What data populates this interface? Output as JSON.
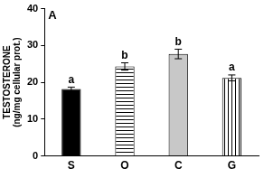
{
  "chart_data": {
    "type": "bar",
    "title": "A",
    "y_label": [
      "TESTOSTERONE",
      "(ng/mg cellular prot.)"
    ],
    "categories": [
      "S",
      "O",
      "C",
      "G"
    ],
    "values": [
      18.2,
      24.3,
      27.7,
      21.2
    ],
    "errors": [
      0.5,
      1.0,
      1.3,
      0.8
    ],
    "annotations": [
      "a",
      "b",
      "b",
      "a"
    ],
    "colors": [
      "#000000",
      "#ffffff",
      "#c8c8c8",
      "#ffffff"
    ],
    "ylim": [
      0,
      40
    ],
    "yticks": [
      0,
      10,
      20,
      30,
      40
    ],
    "grid": false
  }
}
